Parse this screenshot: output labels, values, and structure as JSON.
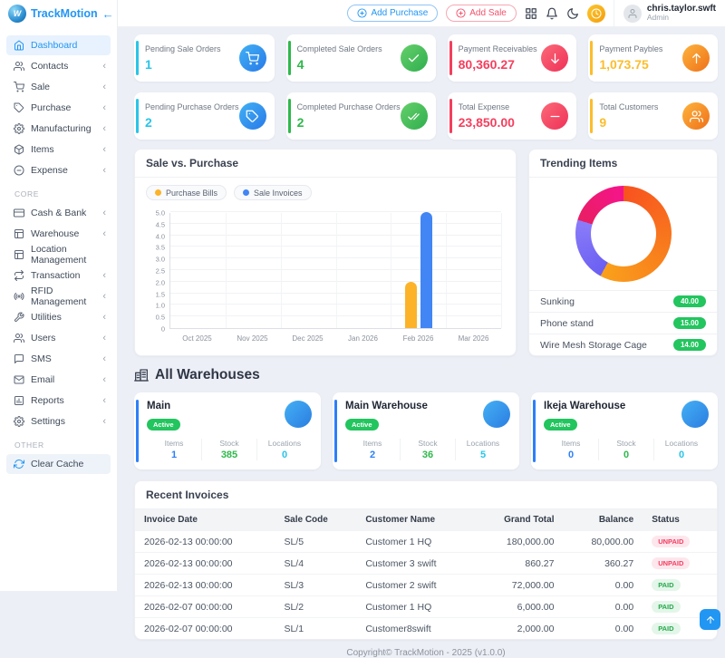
{
  "brand": {
    "name": "TrackMotion",
    "logo_letter": "W",
    "collapse_glyph": "←"
  },
  "header": {
    "add_purchase_label": "Add Purchase",
    "add_sale_label": "Add Sale",
    "icons": [
      "apps-grid-icon",
      "notifications-bell-icon",
      "dark-mode-moon-icon",
      "session-clock-icon"
    ],
    "user": {
      "name": "chris.taylor.swft",
      "role": "Admin"
    }
  },
  "ui": {
    "chevron_glyph": "‹"
  },
  "sidebar": {
    "sections": [
      {
        "label": "",
        "items": [
          {
            "label": "Dashboard",
            "icon": "home",
            "active": true,
            "chevron": false
          },
          {
            "label": "Contacts",
            "icon": "users",
            "chevron": true
          },
          {
            "label": "Sale",
            "icon": "cart",
            "chevron": true
          },
          {
            "label": "Purchase",
            "icon": "tag",
            "chevron": true
          },
          {
            "label": "Manufacturing",
            "icon": "gear",
            "chevron": true
          },
          {
            "label": "Items",
            "icon": "box",
            "chevron": true
          },
          {
            "label": "Expense",
            "icon": "minus-circle",
            "chevron": true
          }
        ]
      },
      {
        "label": "CORE",
        "items": [
          {
            "label": "Cash & Bank",
            "icon": "card",
            "chevron": true
          },
          {
            "label": "Warehouse",
            "icon": "layout",
            "chevron": true
          },
          {
            "label": "Location Management",
            "icon": "layout",
            "chevron": false
          },
          {
            "label": "Transaction",
            "icon": "repeat",
            "chevron": true
          },
          {
            "label": "RFID Management",
            "icon": "radio",
            "chevron": true
          },
          {
            "label": "Utilities",
            "icon": "tool",
            "chevron": true
          },
          {
            "label": "Users",
            "icon": "users",
            "chevron": true
          },
          {
            "label": "SMS",
            "icon": "chat",
            "chevron": true
          },
          {
            "label": "Email",
            "icon": "mail",
            "chevron": true
          },
          {
            "label": "Reports",
            "icon": "report",
            "chevron": true
          },
          {
            "label": "Settings",
            "icon": "gear",
            "chevron": true
          }
        ]
      },
      {
        "label": "OTHER",
        "items": [
          {
            "label": "Clear Cache",
            "icon": "refresh",
            "chevron": false,
            "cache": true
          }
        ]
      }
    ]
  },
  "stats": [
    {
      "label": "Pending Sale Orders",
      "value": "1",
      "accent": "#29c5e8",
      "icon": "cart",
      "icon_style": "g-blue"
    },
    {
      "label": "Completed Sale Orders",
      "value": "4",
      "accent": "#2eb84b",
      "icon": "check",
      "icon_style": "g-green"
    },
    {
      "label": "Payment Receivables",
      "value": "80,360.27",
      "accent": "#f43f5e",
      "icon": "arrow-down",
      "icon_style": "g-red"
    },
    {
      "label": "Payment Paybles",
      "value": "1,073.75",
      "accent": "#fbbd2c",
      "icon": "arrow-up",
      "icon_style": "g-orange"
    },
    {
      "label": "Pending Purchase Orders",
      "value": "2",
      "accent": "#29c5e8",
      "icon": "tag",
      "icon_style": "g-blue"
    },
    {
      "label": "Completed Purchase Orders",
      "value": "2",
      "accent": "#2eb84b",
      "icon": "double-check",
      "icon_style": "g-green"
    },
    {
      "label": "Total Expense",
      "value": "23,850.00",
      "accent": "#f43f5e",
      "icon": "minus",
      "icon_style": "g-red"
    },
    {
      "label": "Total Customers",
      "value": "9",
      "accent": "#fbbd2c",
      "icon": "users",
      "icon_style": "g-orange"
    }
  ],
  "chart_data": [
    {
      "type": "bar",
      "title": "Sale vs. Purchase",
      "categories": [
        "Oct 2025",
        "Nov 2025",
        "Dec 2025",
        "Jan 2026",
        "Feb 2026",
        "Mar 2026"
      ],
      "series": [
        {
          "name": "Purchase Bills",
          "color": "#fcb32a",
          "values": [
            0,
            0,
            0,
            0,
            2,
            0
          ]
        },
        {
          "name": "Sale Invoices",
          "color": "#4285f4",
          "values": [
            0,
            0,
            0,
            0,
            5,
            0
          ]
        }
      ],
      "ylim": [
        0,
        5
      ],
      "ytick_step": 0.5,
      "grid": true,
      "legend_position": "top-left"
    },
    {
      "type": "pie",
      "donut": true,
      "title": "Trending Items",
      "labels": [
        "Sunking",
        "Phone stand",
        "Wire Mesh Storage Cage"
      ],
      "values": [
        40.0,
        15.0,
        14.0
      ],
      "display_values": [
        "40.00",
        "15.00",
        "14.00"
      ],
      "colors": [
        "#f97c16",
        "#7a6cf6",
        "#ef1b6e"
      ],
      "slice_gradients": [
        [
          "#f8521f",
          "#f9a11b"
        ],
        [
          "#6a5ff2",
          "#8b7cf9"
        ],
        [
          "#e91e63",
          "#f5148b"
        ]
      ],
      "value_badge_color": "#22c55e"
    }
  ],
  "warehouses": {
    "heading": "All Warehouses",
    "stat_labels": [
      "Items",
      "Stock",
      "Locations"
    ],
    "stat_colors": {
      "items": "#2d7ff9",
      "stock": "#2eb84b",
      "locations": "#29c5e8"
    },
    "cards": [
      {
        "name": "Main",
        "status": "Active",
        "items": "1",
        "stock": "385",
        "locations": "0"
      },
      {
        "name": "Main Warehouse",
        "status": "Active",
        "items": "2",
        "stock": "36",
        "locations": "5"
      },
      {
        "name": "Ikeja Warehouse",
        "status": "Active",
        "items": "0",
        "stock": "0",
        "locations": "0"
      }
    ]
  },
  "invoices": {
    "title": "Recent Invoices",
    "headers": [
      "Invoice Date",
      "Sale Code",
      "Customer Name",
      "Grand Total",
      "Balance",
      "Status"
    ],
    "rows": [
      [
        "2026-02-13 00:00:00",
        "SL/5",
        "Customer 1 HQ",
        "180,000.00",
        "80,000.00",
        "UNPAID"
      ],
      [
        "2026-02-13 00:00:00",
        "SL/4",
        "Customer 3 swift",
        "860.27",
        "360.27",
        "UNPAID"
      ],
      [
        "2026-02-13 00:00:00",
        "SL/3",
        "Customer 2 swift",
        "72,000.00",
        "0.00",
        "PAID"
      ],
      [
        "2026-02-07 00:00:00",
        "SL/2",
        "Customer 1 HQ",
        "6,000.00",
        "0.00",
        "PAID"
      ],
      [
        "2026-02-07 00:00:00",
        "SL/1",
        "Customer8swift",
        "2,000.00",
        "0.00",
        "PAID"
      ]
    ],
    "status_styles": {
      "PAID": {
        "bg": "#e3f6e9",
        "color": "#27a84c"
      },
      "UNPAID": {
        "bg": "#fde7ec",
        "color": "#f23f63"
      }
    }
  },
  "footer": {
    "copyright": "Copyright© TrackMotion - 2025 (v1.0.0)"
  }
}
